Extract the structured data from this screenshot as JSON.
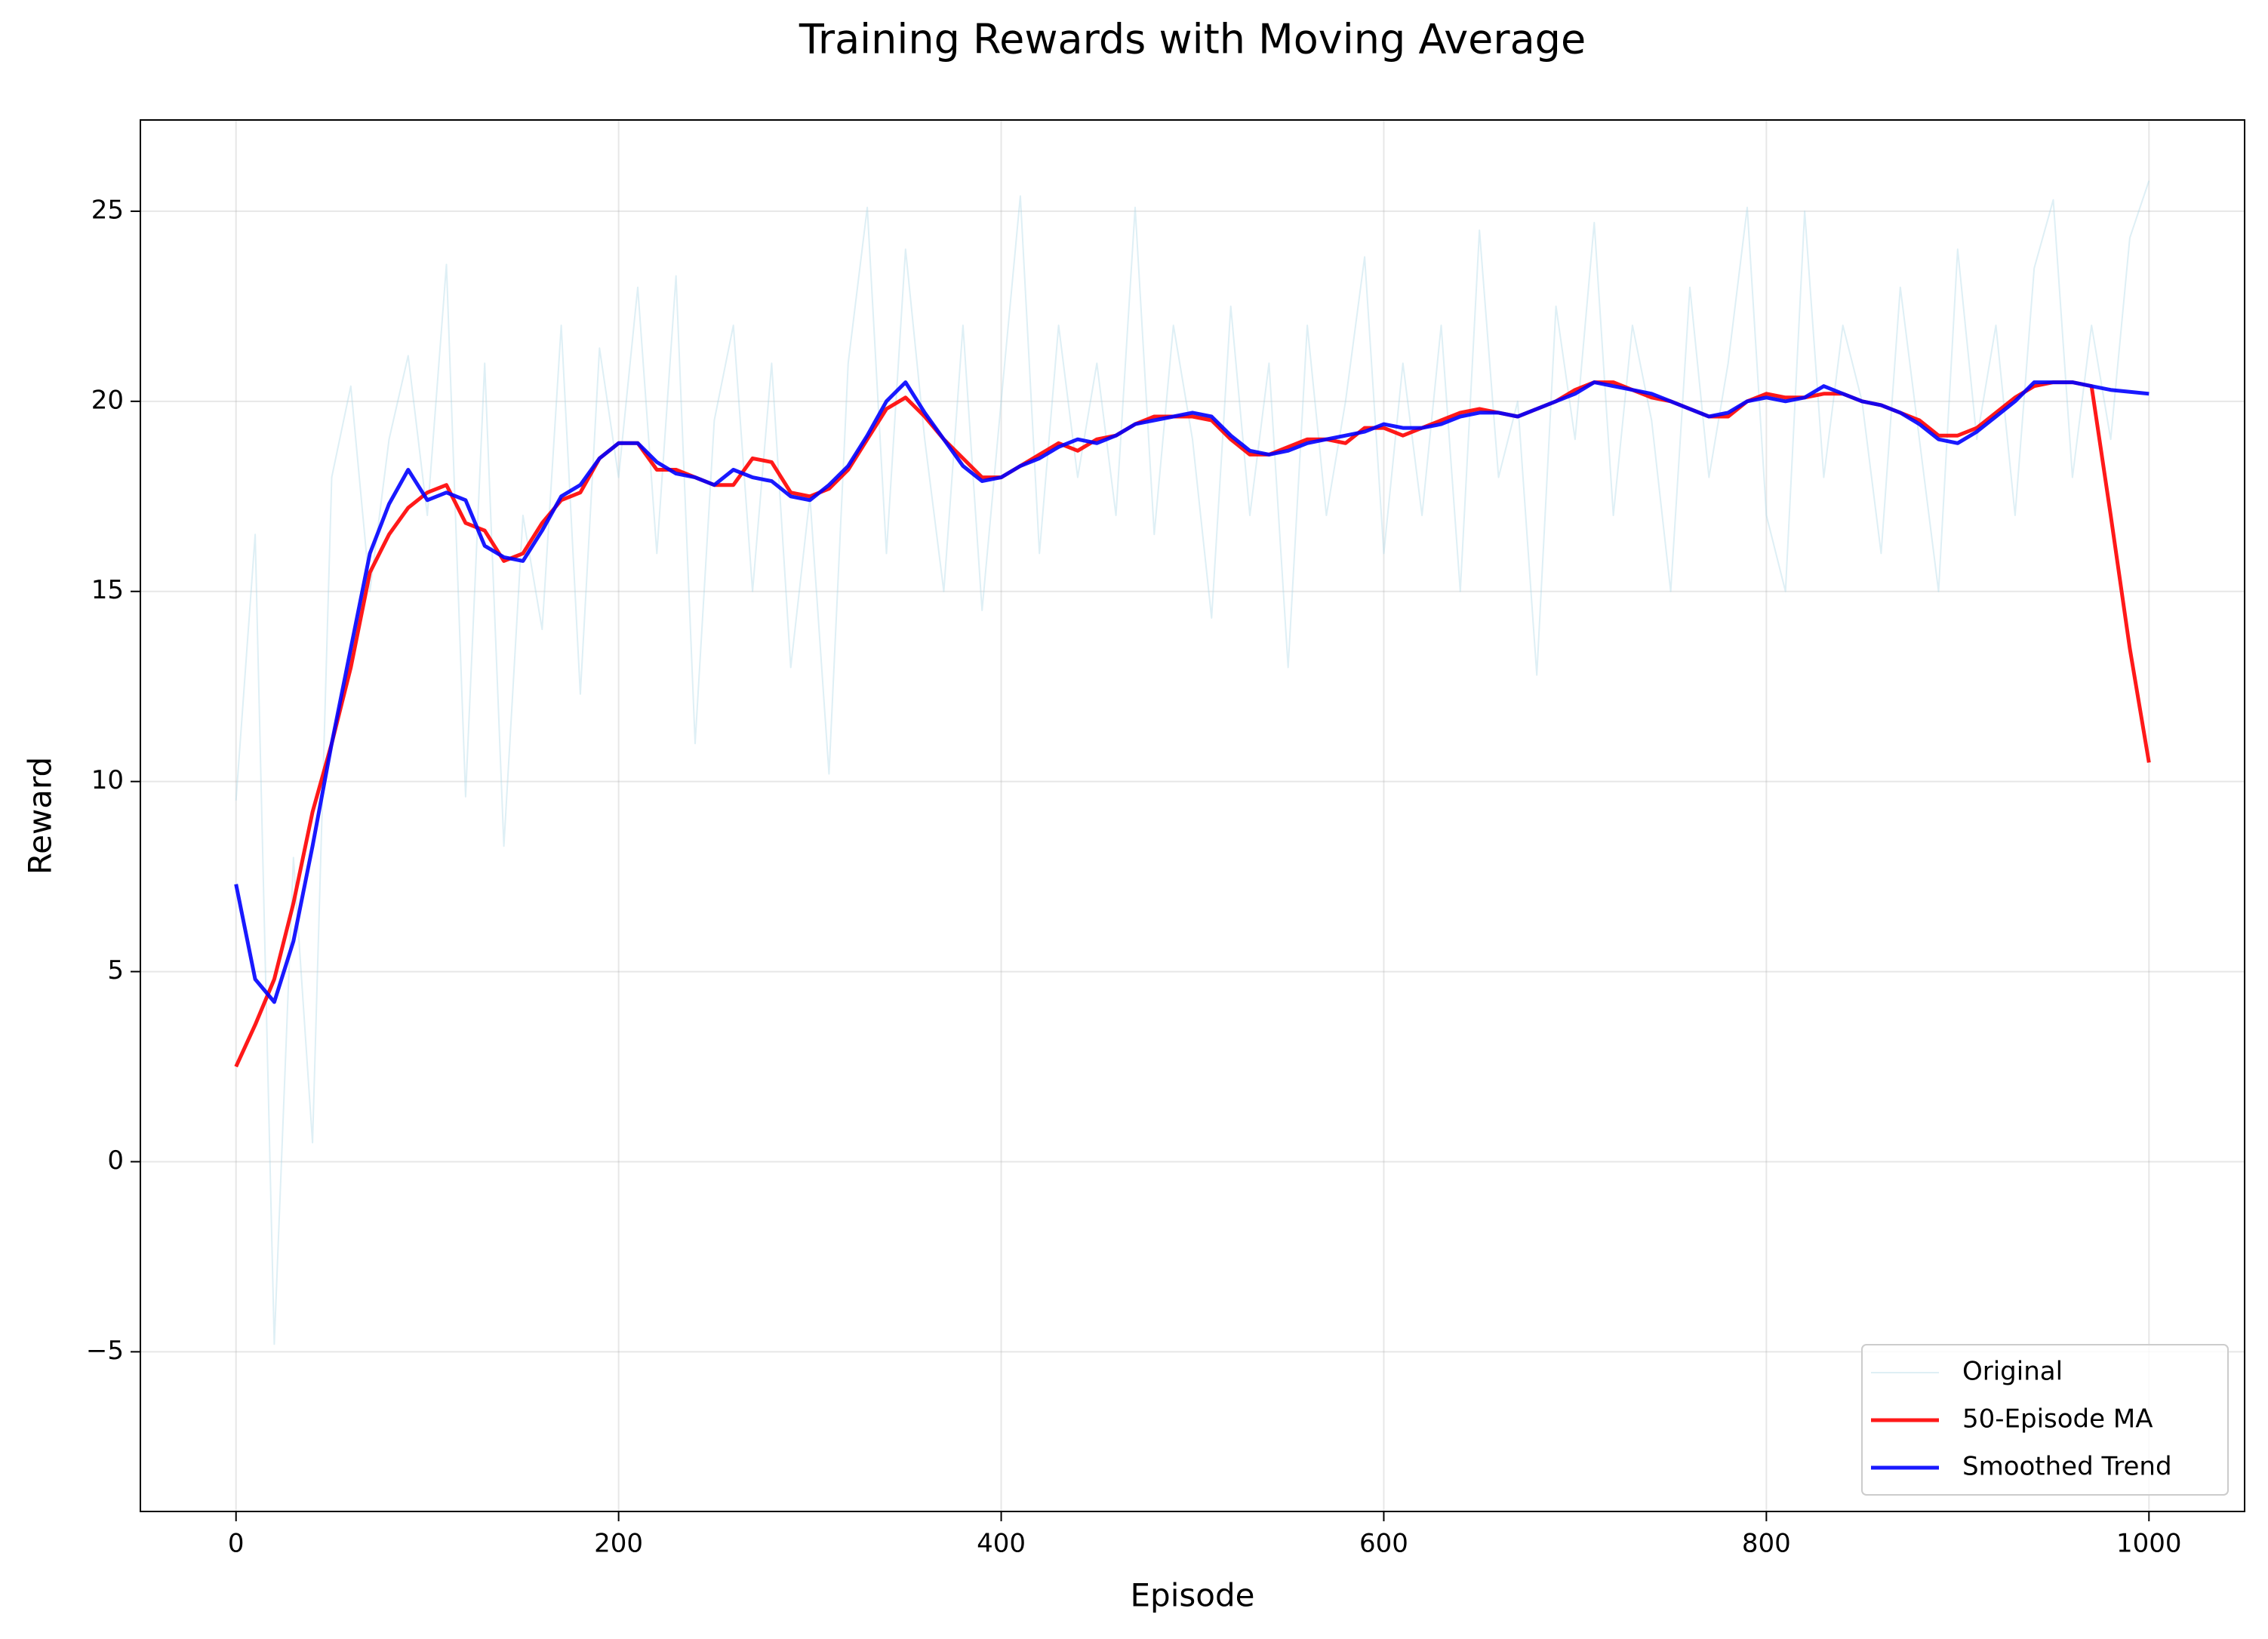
{
  "chart_data": {
    "type": "line",
    "title": "Training Rewards with Moving Average",
    "x_label": "Episode",
    "y_label": "Reward",
    "x": [
      0,
      10,
      20,
      30,
      40,
      50,
      60,
      70,
      80,
      90,
      100,
      110,
      120,
      130,
      140,
      150,
      160,
      170,
      180,
      190,
      200,
      210,
      220,
      230,
      240,
      250,
      260,
      270,
      280,
      290,
      300,
      310,
      320,
      330,
      340,
      350,
      360,
      370,
      380,
      390,
      400,
      410,
      420,
      430,
      440,
      450,
      460,
      470,
      480,
      490,
      500,
      510,
      520,
      530,
      540,
      550,
      560,
      570,
      580,
      590,
      600,
      610,
      620,
      630,
      640,
      650,
      660,
      670,
      680,
      690,
      700,
      710,
      720,
      730,
      740,
      750,
      760,
      770,
      780,
      790,
      800,
      810,
      820,
      830,
      840,
      850,
      860,
      870,
      880,
      890,
      900,
      910,
      920,
      930,
      940,
      950,
      960,
      970,
      980,
      990,
      1000
    ],
    "series": [
      {
        "name": "Original",
        "color": "#add8e6",
        "opacity": 0.4,
        "width": 2,
        "values": [
          9.5,
          16.5,
          -4.8,
          8,
          0.5,
          18,
          20.4,
          15,
          19,
          21.2,
          17,
          23.6,
          9.6,
          21,
          8.3,
          17,
          14,
          22,
          12.3,
          21.4,
          18,
          23,
          16,
          23.3,
          11,
          19.5,
          22,
          15,
          21,
          13,
          17.5,
          10.2,
          21,
          25.1,
          16,
          24,
          19,
          15,
          22,
          14.5,
          20,
          25.4,
          16,
          22,
          18,
          21,
          17,
          25.1,
          16.5,
          22,
          19,
          14.3,
          22.5,
          17,
          21,
          13,
          22,
          17,
          20,
          23.8,
          16,
          21,
          17,
          22,
          15,
          24.5,
          18,
          20,
          12.8,
          22.5,
          19,
          24.7,
          17,
          22,
          19.5,
          15,
          23,
          18,
          21,
          25.1,
          17,
          15,
          25,
          18,
          22,
          20,
          16,
          23,
          19,
          15,
          24,
          19,
          22,
          17,
          23.5,
          25.3,
          18,
          22,
          19,
          24.3,
          25.8
        ]
      },
      {
        "name": "50-Episode MA",
        "color": "#ff0000",
        "opacity": 0.9,
        "width": 5,
        "values": [
          2.5,
          3.6,
          4.8,
          6.8,
          9.2,
          11,
          13,
          15.5,
          16.5,
          17.2,
          17.6,
          17.8,
          16.8,
          16.6,
          15.8,
          16,
          16.8,
          17.4,
          17.6,
          18.5,
          18.9,
          18.9,
          18.2,
          18.2,
          18,
          17.8,
          17.8,
          18.5,
          18.4,
          17.6,
          17.5,
          17.7,
          18.2,
          19,
          19.8,
          20.1,
          19.6,
          19,
          18.5,
          18,
          18,
          18.3,
          18.6,
          18.9,
          18.7,
          19,
          19.1,
          19.4,
          19.6,
          19.6,
          19.6,
          19.5,
          19,
          18.6,
          18.6,
          18.8,
          19,
          19,
          18.9,
          19.3,
          19.3,
          19.1,
          19.3,
          19.5,
          19.7,
          19.8,
          19.7,
          19.6,
          19.8,
          20,
          20.3,
          20.5,
          20.5,
          20.3,
          20.1,
          20,
          19.8,
          19.6,
          19.6,
          20,
          20.2,
          20.1,
          20.1,
          20.2,
          20.2,
          20,
          19.9,
          19.7,
          19.5,
          19.1,
          19.1,
          19.3,
          19.7,
          20.1,
          20.4,
          20.5,
          20.5,
          20.4,
          17,
          13.5,
          10.5
        ]
      },
      {
        "name": "Smoothed Trend",
        "color": "#0000ff",
        "opacity": 0.9,
        "width": 5,
        "values": [
          7.3,
          4.8,
          4.2,
          5.8,
          8.3,
          11,
          13.5,
          16,
          17.3,
          18.2,
          17.4,
          17.6,
          17.4,
          16.2,
          15.9,
          15.8,
          16.6,
          17.5,
          17.8,
          18.5,
          18.9,
          18.9,
          18.4,
          18.1,
          18,
          17.8,
          18.2,
          18,
          17.9,
          17.5,
          17.4,
          17.8,
          18.3,
          19.1,
          20,
          20.5,
          19.7,
          19,
          18.3,
          17.9,
          18,
          18.3,
          18.5,
          18.8,
          19,
          18.9,
          19.1,
          19.4,
          19.5,
          19.6,
          19.7,
          19.6,
          19.1,
          18.7,
          18.6,
          18.7,
          18.9,
          19,
          19.1,
          19.2,
          19.4,
          19.3,
          19.3,
          19.4,
          19.6,
          19.7,
          19.7,
          19.6,
          19.8,
          20,
          20.2,
          20.5,
          20.4,
          20.3,
          20.2,
          20,
          19.8,
          19.6,
          19.7,
          20,
          20.1,
          20,
          20.1,
          20.4,
          20.2,
          20,
          19.9,
          19.7,
          19.4,
          19,
          18.9,
          19.2,
          19.6,
          20,
          20.5,
          20.5,
          20.5,
          20.4,
          20.3,
          20.25,
          20.2
        ]
      }
    ],
    "xlim": [
      -50,
      1050
    ],
    "ylim": [
      -9.2,
      27.4
    ],
    "xticks": [
      0,
      200,
      400,
      600,
      800,
      1000
    ],
    "yticks": [
      {
        "value": -5,
        "label": "−5"
      },
      0,
      5,
      10,
      15,
      20,
      25
    ],
    "grid": true,
    "legend": "lower right"
  }
}
